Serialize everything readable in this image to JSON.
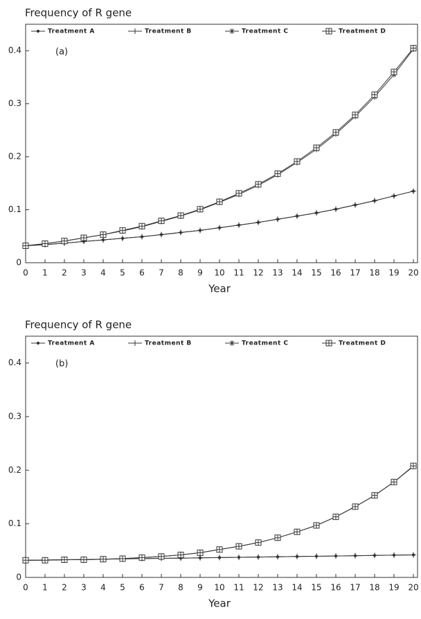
{
  "chart_data": [
    {
      "type": "line",
      "title": "Frequency of R gene",
      "annotation": "(a)",
      "x_label": "Year",
      "x": [
        0,
        1,
        2,
        3,
        4,
        5,
        6,
        7,
        8,
        9,
        10,
        11,
        12,
        13,
        14,
        15,
        16,
        17,
        18,
        19,
        20
      ],
      "xlim": [
        0,
        20
      ],
      "xticks": [
        0,
        1,
        2,
        3,
        4,
        5,
        6,
        7,
        8,
        9,
        10,
        11,
        12,
        13,
        14,
        15,
        16,
        17,
        18,
        19,
        20
      ],
      "ylim": [
        0,
        0.45
      ],
      "yticks": [
        0,
        0.1,
        0.2,
        0.3,
        0.4
      ],
      "series": [
        {
          "name": "Treatment A",
          "color": "#333",
          "marker": "dot",
          "values": [
            0.032,
            0.034,
            0.037,
            0.04,
            0.043,
            0.046,
            0.049,
            0.053,
            0.057,
            0.061,
            0.066,
            0.071,
            0.076,
            0.082,
            0.088,
            0.094,
            0.101,
            0.109,
            0.117,
            0.126,
            0.135
          ]
        },
        {
          "name": "Treatment B",
          "color": "#333",
          "marker": "plus",
          "values": [
            0.032,
            0.034,
            0.037,
            0.04,
            0.043,
            0.046,
            0.049,
            0.053,
            0.057,
            0.061,
            0.066,
            0.071,
            0.076,
            0.082,
            0.088,
            0.094,
            0.101,
            0.109,
            0.117,
            0.126,
            0.135
          ]
        },
        {
          "name": "Treatment C",
          "color": "#333",
          "marker": "star",
          "values": [
            0.032,
            0.036,
            0.041,
            0.047,
            0.053,
            0.06,
            0.068,
            0.078,
            0.088,
            0.1,
            0.114,
            0.129,
            0.146,
            0.166,
            0.189,
            0.214,
            0.243,
            0.276,
            0.313,
            0.355,
            0.403
          ]
        },
        {
          "name": "Treatment D",
          "color": "#333",
          "marker": "square",
          "values": [
            0.032,
            0.036,
            0.041,
            0.047,
            0.053,
            0.061,
            0.069,
            0.079,
            0.089,
            0.101,
            0.115,
            0.131,
            0.148,
            0.168,
            0.191,
            0.217,
            0.246,
            0.279,
            0.317,
            0.36,
            0.405
          ]
        }
      ]
    },
    {
      "type": "line",
      "title": "Frequency of R gene",
      "annotation": "(b)",
      "x_label": "Year",
      "x": [
        0,
        1,
        2,
        3,
        4,
        5,
        6,
        7,
        8,
        9,
        10,
        11,
        12,
        13,
        14,
        15,
        16,
        17,
        18,
        19,
        20
      ],
      "xlim": [
        0,
        20
      ],
      "xticks": [
        0,
        1,
        2,
        3,
        4,
        5,
        6,
        7,
        8,
        9,
        10,
        11,
        12,
        13,
        14,
        15,
        16,
        17,
        18,
        19,
        20
      ],
      "ylim": [
        0,
        0.45
      ],
      "yticks": [
        0,
        0.1,
        0.2,
        0.3,
        0.4
      ],
      "series": [
        {
          "name": "Treatment A",
          "color": "#333",
          "marker": "dot",
          "values": [
            0.032,
            0.0325,
            0.033,
            0.0335,
            0.034,
            0.0345,
            0.035,
            0.0355,
            0.036,
            0.0365,
            0.037,
            0.0375,
            0.038,
            0.0385,
            0.039,
            0.0395,
            0.04,
            0.0405,
            0.041,
            0.0415,
            0.042
          ]
        },
        {
          "name": "Treatment B",
          "color": "#333",
          "marker": "plus",
          "values": [
            0.032,
            0.0325,
            0.033,
            0.0335,
            0.034,
            0.0345,
            0.035,
            0.0355,
            0.036,
            0.0365,
            0.037,
            0.0375,
            0.038,
            0.0385,
            0.039,
            0.0395,
            0.04,
            0.0405,
            0.041,
            0.0415,
            0.042
          ]
        },
        {
          "name": "Treatment C",
          "color": "#333",
          "marker": "star",
          "values": [
            0.032,
            0.032,
            0.033,
            0.033,
            0.034,
            0.035,
            0.037,
            0.039,
            0.042,
            0.046,
            0.052,
            0.058,
            0.065,
            0.074,
            0.085,
            0.097,
            0.113,
            0.132,
            0.153,
            0.178,
            0.207
          ]
        },
        {
          "name": "Treatment D",
          "color": "#333",
          "marker": "square",
          "values": [
            0.032,
            0.032,
            0.033,
            0.033,
            0.034,
            0.035,
            0.037,
            0.039,
            0.042,
            0.046,
            0.052,
            0.058,
            0.065,
            0.074,
            0.085,
            0.097,
            0.113,
            0.132,
            0.153,
            0.178,
            0.208
          ]
        }
      ]
    }
  ]
}
